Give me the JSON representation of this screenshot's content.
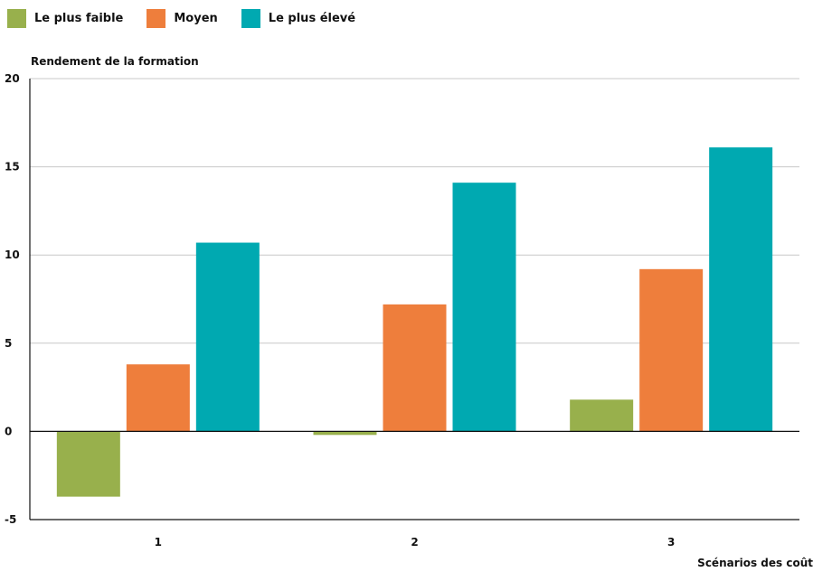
{
  "legend": {
    "items": [
      {
        "label": "Le plus faible",
        "color": "#98b04c"
      },
      {
        "label": "Moyen",
        "color": "#ee7e3c"
      },
      {
        "label": "Le plus élevé",
        "color": "#00a9b1"
      }
    ]
  },
  "chart_data": {
    "type": "bar",
    "title": "",
    "ylabel": "Rendement de la formation",
    "xlabel": "Scénarios des coût",
    "categories": [
      "1",
      "2",
      "3"
    ],
    "ylim": [
      -5,
      20
    ],
    "yticks": [
      "20",
      "15",
      "10",
      "5",
      "0",
      "-5"
    ],
    "grid": true,
    "legend_position": "top-left",
    "series": [
      {
        "name": "Le plus faible",
        "color": "#98b04c",
        "values": [
          -3.7,
          -0.2,
          1.8
        ]
      },
      {
        "name": "Moyen",
        "color": "#ee7e3c",
        "values": [
          3.8,
          7.2,
          9.2
        ]
      },
      {
        "name": "Le plus élevé",
        "color": "#00a9b1",
        "values": [
          10.7,
          14.1,
          16.1
        ]
      }
    ]
  }
}
